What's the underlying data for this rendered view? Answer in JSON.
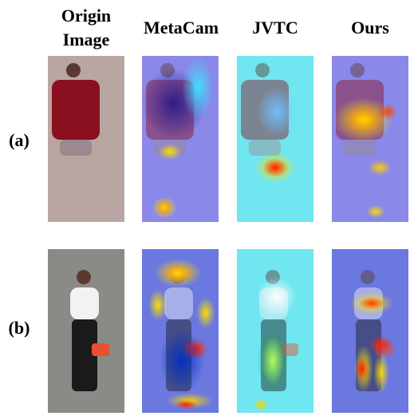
{
  "columns": [
    "Origin Image",
    "MetaCam",
    "JVTC",
    "Ours"
  ],
  "rows": [
    "(a)",
    "(b)"
  ]
}
